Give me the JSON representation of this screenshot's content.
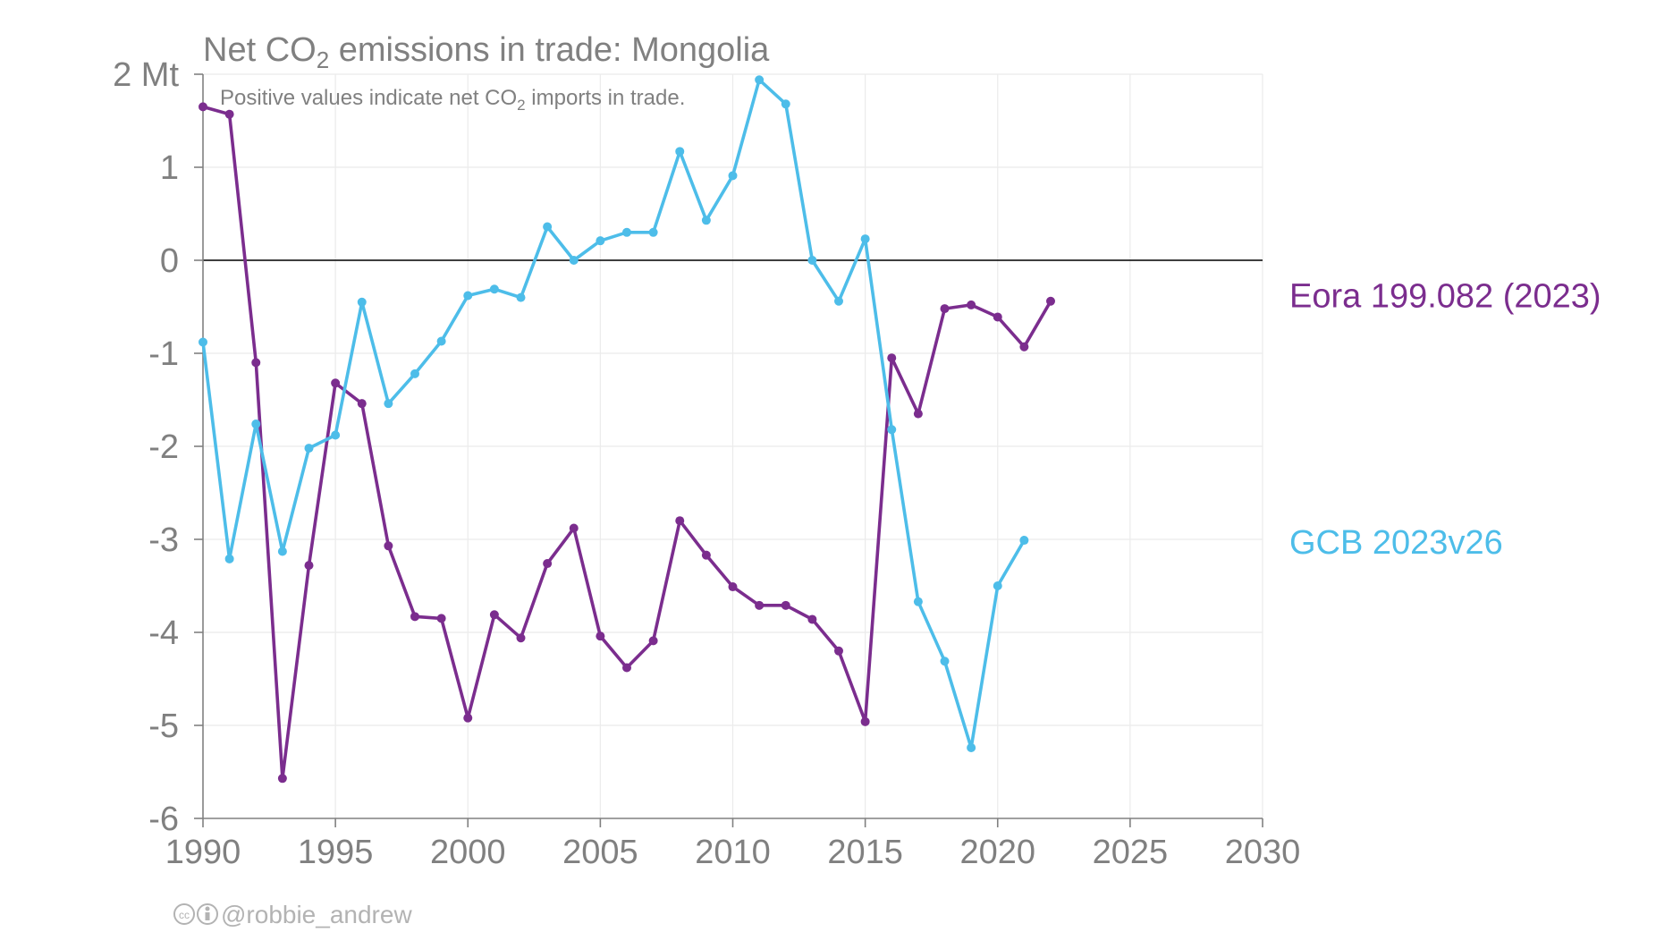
{
  "chart_data": {
    "type": "line",
    "title_parts": [
      "Net CO",
      "2",
      " emissions in trade: Mongolia"
    ],
    "subtitle_parts": [
      "Positive values indicate net CO",
      "2",
      " imports in trade."
    ],
    "y_unit_label": "2 Mt",
    "xlim": [
      1990,
      2030
    ],
    "ylim": [
      -6,
      2
    ],
    "x_ticks": [
      1990,
      1995,
      2000,
      2005,
      2010,
      2015,
      2020,
      2025,
      2030
    ],
    "y_ticks": [
      -6,
      -5,
      -4,
      -3,
      -2,
      -1,
      0,
      1,
      2
    ],
    "y_tick_labels": [
      "-6",
      "-5",
      "-4",
      "-3",
      "-2",
      "-1",
      "0",
      "1",
      "2 Mt"
    ],
    "grid": true,
    "zero_line": true,
    "series": [
      {
        "name": "Eora 199.082 (2023)",
        "color": "#7b2d8e",
        "x": [
          1990,
          1991,
          1992,
          1993,
          1994,
          1995,
          1996,
          1997,
          1998,
          1999,
          2000,
          2001,
          2002,
          2003,
          2004,
          2005,
          2006,
          2007,
          2008,
          2009,
          2010,
          2011,
          2012,
          2013,
          2014,
          2015,
          2016,
          2017,
          2018,
          2019,
          2020,
          2021,
          2022
        ],
        "values": [
          1.65,
          1.57,
          -1.1,
          -5.57,
          -3.28,
          -1.32,
          -1.54,
          -3.07,
          -3.83,
          -3.85,
          -4.92,
          -3.81,
          -4.06,
          -3.26,
          -2.88,
          -4.04,
          -4.38,
          -4.09,
          -2.8,
          -3.17,
          -3.51,
          -3.71,
          -3.71,
          -3.86,
          -4.2,
          -4.96,
          -1.05,
          -1.65,
          -0.52,
          -0.48,
          -0.61,
          -0.93,
          -0.44
        ]
      },
      {
        "name": "GCB 2023v26",
        "color": "#4dbde9",
        "x": [
          1990,
          1991,
          1992,
          1993,
          1994,
          1995,
          1996,
          1997,
          1998,
          1999,
          2000,
          2001,
          2002,
          2003,
          2004,
          2005,
          2006,
          2007,
          2008,
          2009,
          2010,
          2011,
          2012,
          2013,
          2014,
          2015,
          2016,
          2017,
          2018,
          2019,
          2020,
          2021
        ],
        "values": [
          -0.88,
          -3.21,
          -1.76,
          -3.13,
          -2.02,
          -1.88,
          -0.45,
          -1.54,
          -1.22,
          -0.87,
          -0.38,
          -0.31,
          -0.4,
          0.36,
          0.0,
          0.21,
          0.3,
          0.3,
          1.17,
          0.43,
          0.91,
          1.94,
          1.68,
          0.0,
          -0.44,
          0.23,
          -1.82,
          -3.67,
          -4.31,
          -5.24,
          -3.5,
          -3.01
        ]
      }
    ]
  },
  "credit": "@robbie_andrew",
  "icons": [
    "cc-icon",
    "attribution-icon"
  ]
}
